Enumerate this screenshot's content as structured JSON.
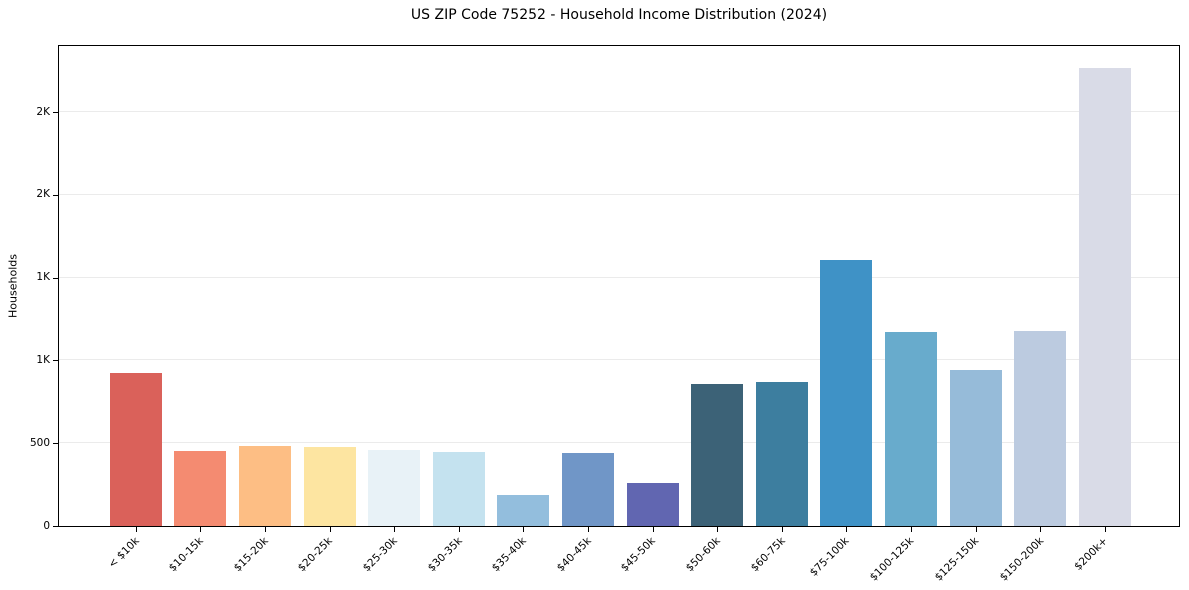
{
  "chart_data": {
    "type": "bar",
    "title": "US ZIP Code 75252 - Household Income Distribution (2024)",
    "xlabel": "",
    "ylabel": "Households",
    "categories": [
      "< $10k",
      "$10-15k",
      "$15-20k",
      "$20-25k",
      "$25-30k",
      "$30-35k",
      "$35-40k",
      "$40-45k",
      "$45-50k",
      "$50-60k",
      "$60-75k",
      "$75-100k",
      "$100-125k",
      "$125-150k",
      "$150-200k",
      "$200k+"
    ],
    "values": [
      925,
      452,
      481,
      480,
      458,
      445,
      185,
      440,
      257,
      860,
      870,
      1605,
      1175,
      945,
      1180,
      2765
    ],
    "bar_colors": [
      "#d95c55",
      "#f4876c",
      "#fdbc80",
      "#fde49e",
      "#e7f2f7",
      "#c2e1ee",
      "#90bcdc",
      "#6b93c5",
      "#5c61ae",
      "#365d73",
      "#377a9c",
      "#398ec4",
      "#63a8ca",
      "#93b9d8",
      "#bac9df",
      "#d8dae6"
    ],
    "y_ticks": {
      "values": [
        0,
        500,
        1000,
        1500,
        2000,
        2500
      ],
      "labels": [
        "0",
        "500",
        "1K",
        "1K",
        "2K",
        "2K"
      ]
    },
    "ylim": [
      0,
      2900
    ],
    "grid": "horizontal",
    "gridline_color": "#ebebeb",
    "spine_color": "#000000",
    "background": "#ffffff",
    "legend": "none"
  }
}
